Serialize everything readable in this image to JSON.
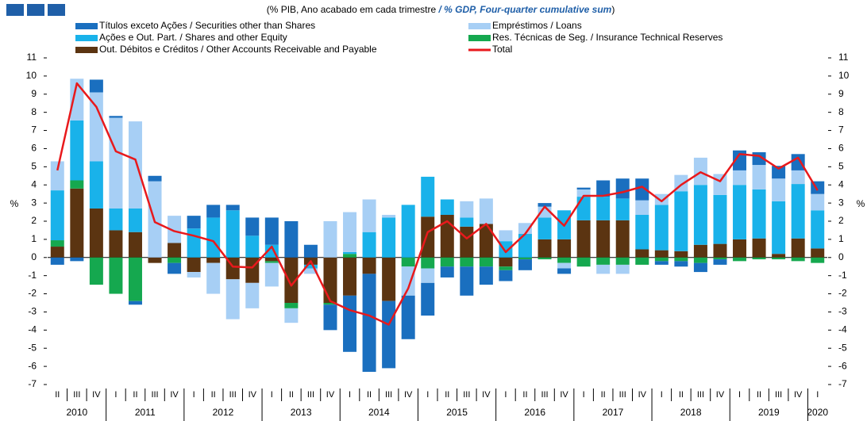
{
  "chart_data": {
    "type": "bar",
    "title_parts": [
      "(% PIB, Ano acabado em cada trimestre",
      "/ % GDP, Four-quarter cumulative sum",
      ")"
    ],
    "y_label": "%",
    "categories": [
      "II",
      "III",
      "IV",
      "I",
      "II",
      "III",
      "IV",
      "I",
      "II",
      "III",
      "IV",
      "I",
      "II",
      "III",
      "IV",
      "I",
      "II",
      "III",
      "IV",
      "I",
      "II",
      "III",
      "IV",
      "I",
      "II",
      "III",
      "IV",
      "I",
      "II",
      "III",
      "IV",
      "I",
      "II",
      "III",
      "IV",
      "I",
      "II",
      "III",
      "IV",
      "I"
    ],
    "years": [
      "2010",
      "2011",
      "2012",
      "2013",
      "2014",
      "2015",
      "2016",
      "2017",
      "2018",
      "2019",
      "2020"
    ],
    "ylim": [
      -7,
      11
    ],
    "yticks": [
      -7,
      -6,
      -5,
      -4,
      -3,
      -2,
      -1,
      0,
      1,
      2,
      3,
      4,
      5,
      6,
      7,
      8,
      9,
      10,
      11
    ],
    "series": [
      {
        "name": "Títulos exceto Ações / Securities other than Shares",
        "color": "#1a6fbf",
        "values": [
          -0.4,
          -0.2,
          0.7,
          0.1,
          -0.2,
          0.3,
          -0.6,
          0.7,
          0.7,
          0.3,
          1.0,
          1.5,
          2.0,
          0.7,
          -1.4,
          -3.1,
          -5.4,
          -3.7,
          -2.4,
          -1.8,
          -0.6,
          -1.6,
          -1.0,
          -0.6,
          -0.6,
          0.2,
          -0.3,
          0.1,
          0.9,
          1.1,
          1.2,
          -0.2,
          -0.3,
          -0.5,
          -0.3,
          1.1,
          0.7,
          0.7,
          0.9,
          0.7
        ]
      },
      {
        "name": "Empréstimos / Loans",
        "color": "#a7cff5",
        "values": [
          1.6,
          2.3,
          3.8,
          5.0,
          4.8,
          4.2,
          1.5,
          -0.3,
          -1.7,
          -2.2,
          -1.4,
          -1.3,
          -0.8,
          -0.3,
          2.0,
          2.2,
          1.8,
          0.15,
          -1.6,
          -0.8,
          0,
          0.9,
          1.4,
          0.6,
          0.6,
          0.6,
          -0.3,
          0.4,
          -0.5,
          -0.5,
          0.8,
          0.6,
          0.9,
          1.5,
          1.15,
          0.8,
          1.35,
          1.25,
          0.75,
          0.9
        ]
      },
      {
        "name": "Ações e Out. Part. / Shares and other Equity",
        "color": "#19b2ea",
        "values": [
          2.75,
          3.3,
          2.6,
          1.2,
          1.3,
          0,
          0,
          1.6,
          2.2,
          2.6,
          1.2,
          0.7,
          0,
          -0.2,
          0,
          0.1,
          1.4,
          2.2,
          2.9,
          2.2,
          0.85,
          0.5,
          0,
          0.9,
          1.3,
          1.2,
          1.6,
          1.3,
          1.3,
          1.2,
          1.9,
          2.5,
          3.3,
          3.3,
          2.7,
          3.0,
          2.7,
          2.9,
          3.0,
          2.1
        ]
      },
      {
        "name": "Res. Técnicas de Seg. / Insurance Technical Reserves",
        "color": "#15a84f",
        "values": [
          0.35,
          0.45,
          -1.5,
          -2.0,
          -2.4,
          0,
          -0.3,
          0,
          0,
          0,
          0,
          -0.1,
          -0.3,
          0,
          -0.1,
          0.2,
          0,
          0,
          -0.5,
          -0.6,
          -0.5,
          -0.5,
          -0.5,
          -0.2,
          -0.1,
          -0.1,
          -0.3,
          -0.5,
          -0.4,
          -0.4,
          -0.4,
          -0.2,
          -0.2,
          -0.3,
          -0.1,
          -0.2,
          -0.1,
          -0.1,
          -0.2,
          -0.3
        ]
      },
      {
        "name": "Out. Débitos e Créditos / Other Accounts Receivable and Payable",
        "color": "#5b3411",
        "values": [
          0.6,
          3.8,
          2.7,
          1.5,
          1.4,
          -0.3,
          0.8,
          -0.8,
          -0.3,
          -1.2,
          -1.4,
          -0.2,
          -2.5,
          -0.4,
          -2.5,
          -2.1,
          -0.9,
          -2.4,
          0,
          2.25,
          2.35,
          1.7,
          1.85,
          -0.5,
          0,
          1.0,
          1.0,
          2.05,
          2.05,
          2.05,
          0.45,
          0.4,
          0.35,
          0.7,
          0.75,
          1.0,
          1.05,
          0.2,
          1.05,
          0.5
        ]
      },
      {
        "name": "Total",
        "color": "#e8191c",
        "type": "line",
        "values": [
          4.8,
          9.6,
          8.3,
          5.85,
          5.4,
          1.95,
          1.45,
          1.2,
          0.9,
          -0.5,
          -0.55,
          0.6,
          -1.55,
          -0.2,
          -2.4,
          -2.9,
          -3.2,
          -3.7,
          -1.7,
          1.4,
          2.0,
          1.05,
          1.85,
          0.3,
          1.3,
          2.8,
          1.75,
          3.4,
          3.4,
          3.6,
          3.9,
          3.1,
          4.0,
          4.7,
          4.2,
          5.7,
          5.6,
          4.9,
          5.5,
          3.7
        ]
      }
    ]
  }
}
